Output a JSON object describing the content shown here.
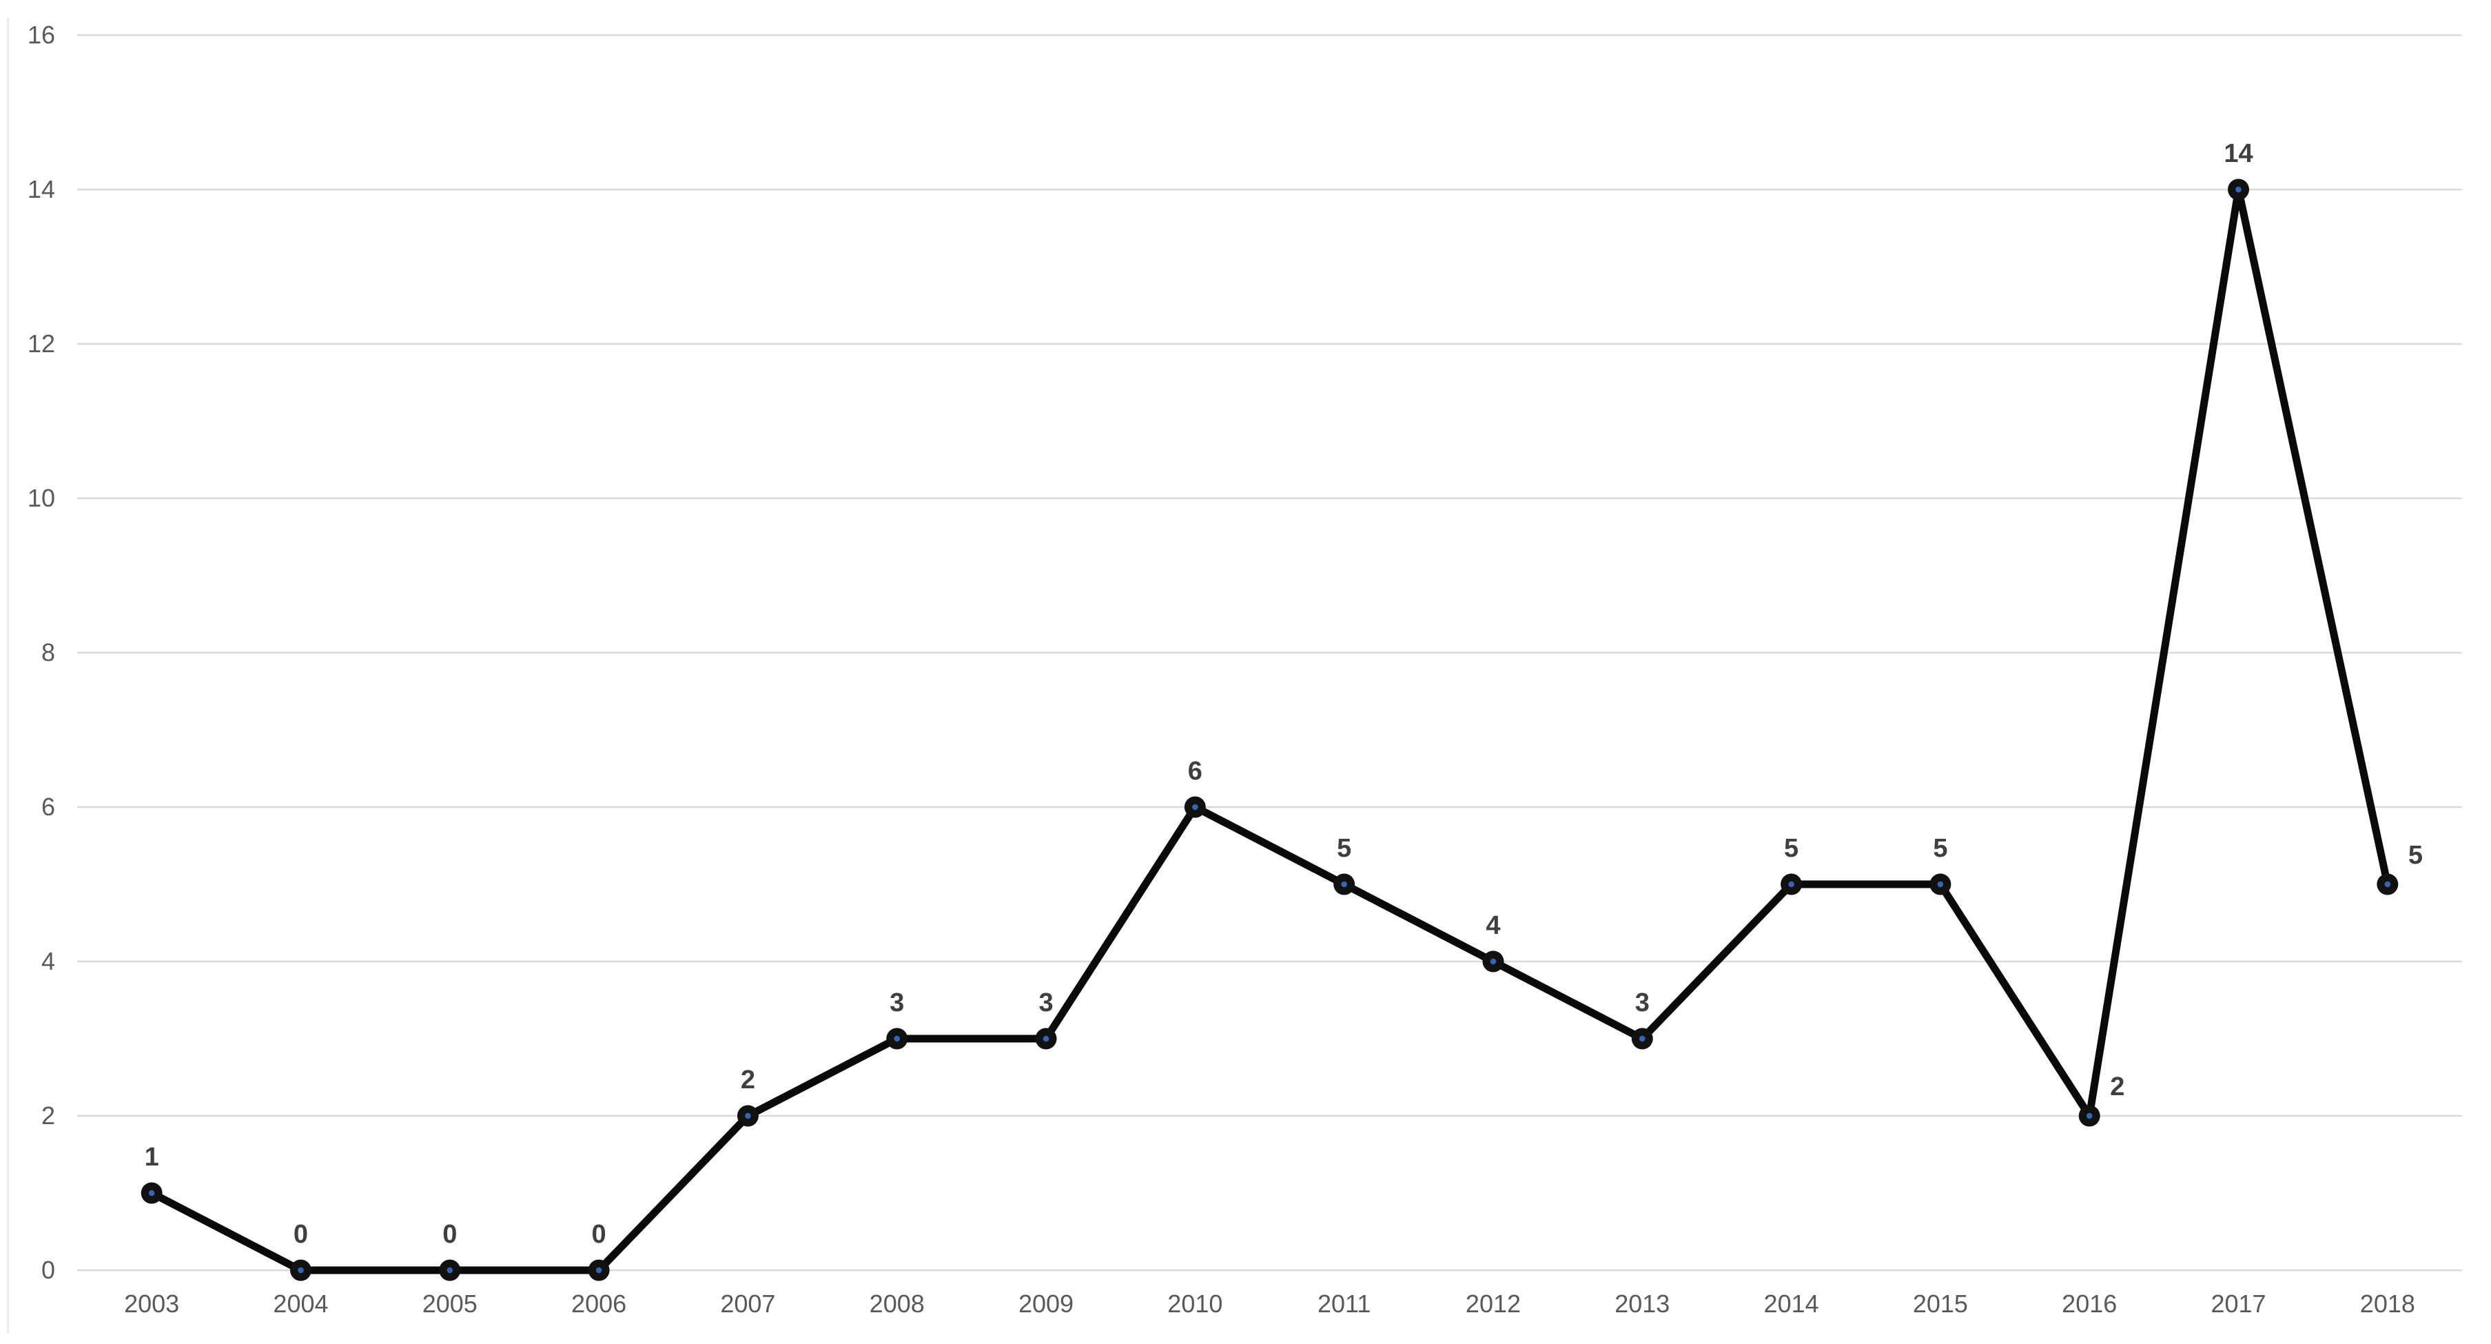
{
  "chart_data": {
    "type": "line",
    "categories": [
      "2003",
      "2004",
      "2005",
      "2006",
      "2007",
      "2008",
      "2009",
      "2010",
      "2011",
      "2012",
      "2013",
      "2014",
      "2015",
      "2016",
      "2017",
      "2018"
    ],
    "series": [
      {
        "name": "",
        "values": [
          1,
          0,
          0,
          0,
          2,
          3,
          3,
          6,
          5,
          4,
          3,
          5,
          5,
          2,
          14,
          5
        ]
      }
    ],
    "point_labels": [
      "1",
      "0",
      "0",
      "0",
      "2",
      "3",
      "3",
      "6",
      "5",
      "4",
      "3",
      "5",
      "5",
      "2",
      "14",
      "5"
    ],
    "point_label_positions": [
      "above",
      "above",
      "above",
      "above",
      "above",
      "above",
      "above",
      "above",
      "above",
      "above",
      "above",
      "above",
      "above",
      "right",
      "above",
      "right"
    ],
    "ylim": [
      0,
      16
    ],
    "ytick_labels": [
      "0",
      "2",
      "4",
      "6",
      "8",
      "10",
      "12",
      "14",
      "16"
    ],
    "grid": "horizontal",
    "legend_position": "none",
    "marker": "filled-circle-with-center-dot",
    "colors": {
      "line": "#0a0a0a",
      "marker": "#111111",
      "marker_dot": "#3565b5",
      "gridline": "#d9d9d9",
      "tick_label": "#595959",
      "data_label": "#3f3f3f",
      "background": "#ffffff"
    }
  }
}
